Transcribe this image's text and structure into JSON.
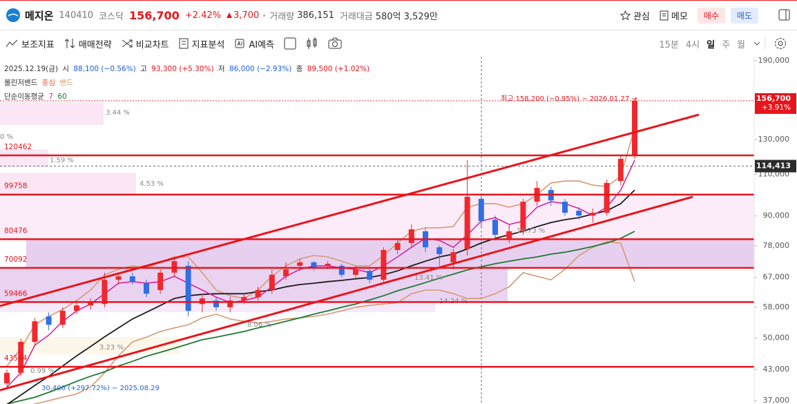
{
  "header": {
    "name": "메지온",
    "code": "140410",
    "market": "코스닥",
    "price": "156,700",
    "change_pct": "+2.42%",
    "change": "3,700",
    "volume_label": "거래량",
    "volume": "386,151",
    "amount_label": "거래대금",
    "amount": "580억 3,529만",
    "watch": "관심",
    "memo": "메모",
    "buy": "매수",
    "sell": "매도"
  },
  "toolbar": {
    "tools": [
      "보조지표",
      "매매전략",
      "비교차트",
      "지표분석",
      "AI예측"
    ],
    "periods": [
      "15분",
      "4시",
      "일",
      "주",
      "월"
    ],
    "active_period": "일"
  },
  "info": {
    "date": "2025.12.19(금)",
    "open_label": "시",
    "open": "88,100 (−0.56%)",
    "high_label": "고",
    "high": "93,300 (+5.30%)",
    "low_label": "저",
    "low": "86,000 (−2.93%)",
    "close_label": "종",
    "close": "89,500 (+1.02%)"
  },
  "chart_data": {
    "type": "candlestick",
    "up_color": "#f0282d",
    "down_color": "#2f6ee6",
    "log_scale": true,
    "ylim": [
      36400,
      193800
    ],
    "yticks": [
      {
        "value": 190000,
        "label": "190,000"
      },
      {
        "value": 130000,
        "label": "130,000"
      },
      {
        "value": 110000,
        "label": "110,000"
      },
      {
        "value": 90000,
        "label": "90,000"
      },
      {
        "value": 78000,
        "label": "78,000"
      },
      {
        "value": 67000,
        "label": "67,000"
      },
      {
        "value": 58000,
        "label": "58,000"
      },
      {
        "value": 50000,
        "label": "50,000"
      },
      {
        "value": 43000,
        "label": "43,000"
      },
      {
        "value": 37000,
        "label": "37,000"
      }
    ],
    "open": [
      40200,
      42300,
      49100,
      55500,
      53300,
      57000,
      58500,
      58900,
      66200,
      67300,
      65100,
      63000,
      68500,
      70800,
      58900,
      59900,
      58000,
      59900,
      60900,
      63000,
      67300,
      70800,
      72000,
      70800,
      70800,
      67800,
      69100,
      66200,
      76400,
      79000,
      83600,
      77400,
      72000,
      76800,
      97700,
      88400,
      80800,
      83600,
      96400,
      102000,
      96400,
      92300,
      90200,
      91400,
      106500,
      120500
    ],
    "high": [
      43000,
      49900,
      55100,
      56600,
      58000,
      59900,
      60500,
      68500,
      68500,
      68500,
      66200,
      69600,
      73900,
      72400,
      61300,
      60900,
      60900,
      61900,
      64000,
      69600,
      72000,
      73200,
      72400,
      72400,
      71500,
      70800,
      70100,
      77400,
      80800,
      86400,
      85000,
      78200,
      76800,
      117700,
      100300,
      90200,
      86400,
      97700,
      106500,
      103700,
      97700,
      93900,
      93300,
      107200,
      120500,
      158200
    ],
    "low": [
      39500,
      41600,
      48300,
      51900,
      52500,
      56100,
      57400,
      58000,
      64700,
      64700,
      60900,
      61900,
      67300,
      55500,
      56600,
      57000,
      56600,
      58900,
      59900,
      61900,
      66200,
      69100,
      69100,
      69600,
      66900,
      66900,
      65100,
      65600,
      74900,
      77400,
      75600,
      70800,
      69600,
      74400,
      85500,
      80000,
      79000,
      82200,
      94500,
      94500,
      90200,
      88400,
      87200,
      90200,
      104400,
      118500
    ],
    "close": [
      42300,
      49100,
      54200,
      53300,
      57000,
      58500,
      59300,
      66200,
      67300,
      65600,
      61900,
      68500,
      72400,
      57000,
      60500,
      58000,
      59900,
      60900,
      63000,
      67800,
      69600,
      72000,
      70100,
      71500,
      67800,
      69600,
      66200,
      76400,
      79000,
      84400,
      77400,
      74900,
      75600,
      98700,
      87800,
      82200,
      83600,
      96400,
      103000,
      97000,
      91400,
      90200,
      91400,
      105500,
      118500,
      156700
    ],
    "bollinger": {
      "name": "볼린저밴드",
      "center": {
        "name": "중심",
        "color": "#1b1b1b",
        "values": [
          36300,
          38000,
          39800,
          41600,
          43700,
          45900,
          48000,
          50300,
          52500,
          54800,
          56600,
          58500,
          60500,
          61300,
          61700,
          61900,
          61900,
          61900,
          62500,
          63000,
          64000,
          64700,
          65100,
          65600,
          66000,
          66500,
          66900,
          67800,
          69100,
          70800,
          72400,
          73900,
          74900,
          76800,
          79000,
          80800,
          82200,
          83600,
          85500,
          87200,
          88400,
          89300,
          90800,
          92300,
          95500,
          102000
        ]
      },
      "band": {
        "name": "밴드",
        "color": "#d49a72",
        "upper": [
          43700,
          47500,
          53300,
          55500,
          57400,
          59900,
          63000,
          67800,
          69600,
          70800,
          70100,
          72000,
          73900,
          73900,
          68500,
          63000,
          61300,
          60500,
          63000,
          67300,
          70800,
          73200,
          74400,
          73900,
          72400,
          70800,
          70800,
          74400,
          79000,
          83600,
          85000,
          85000,
          85500,
          93900,
          95500,
          95500,
          93900,
          95500,
          99700,
          105500,
          106500,
          106500,
          104400,
          103700,
          109000,
          137600
        ],
        "lower": [
          34600,
          35800,
          36400,
          37000,
          37600,
          38200,
          39500,
          42300,
          45900,
          49100,
          50200,
          51600,
          52500,
          53300,
          55100,
          56100,
          54800,
          54200,
          53700,
          54200,
          54800,
          55100,
          55500,
          56100,
          57000,
          58000,
          58500,
          58900,
          59300,
          61900,
          63000,
          63000,
          61900,
          60500,
          60500,
          61900,
          64000,
          68500,
          67300,
          66200,
          69600,
          74400,
          77400,
          79500,
          79000,
          65600
        ]
      }
    },
    "moving_average": {
      "name": "단순이동평균",
      "series": [
        {
          "name": "7",
          "color": "#d8249c",
          "values": [
            39500,
            42300,
            48300,
            50700,
            54200,
            57000,
            58900,
            61900,
            65100,
            65600,
            65100,
            65600,
            67300,
            65100,
            63000,
            60900,
            59300,
            59900,
            60900,
            64000,
            67300,
            69600,
            70800,
            70800,
            70100,
            69600,
            68500,
            70800,
            73900,
            77400,
            80800,
            80000,
            77400,
            82200,
            87800,
            89300,
            86400,
            87800,
            93900,
            96400,
            95500,
            93300,
            90200,
            93900,
            102000,
            117700
          ]
        },
        {
          "name": "60",
          "color": "#1d7a34",
          "values": [
            36400,
            37000,
            37600,
            38500,
            39500,
            40600,
            41600,
            42500,
            43700,
            44700,
            45800,
            46700,
            47600,
            48600,
            49600,
            50200,
            50900,
            51600,
            52500,
            53300,
            54200,
            55100,
            56100,
            57000,
            58000,
            58900,
            60100,
            61300,
            62800,
            64000,
            65300,
            66700,
            68000,
            69400,
            70500,
            71500,
            72400,
            73200,
            73900,
            74900,
            75600,
            76600,
            77700,
            79000,
            80800,
            83600
          ]
        }
      ]
    },
    "levels": {
      "color": "#e8141b",
      "values": [
        120462,
        99758,
        80476,
        70092,
        59466,
        43544
      ]
    },
    "profile_labels": [
      "3.44 %",
      "0 %",
      "1.59 %",
      "4.53 %",
      "16.73 %",
      "13.41 %",
      "14.24 %",
      "8.06 %",
      "3.23 %",
      "0.99 %"
    ],
    "high_note": "최고 158,200 (−0.95%) − 2026.01.27 →",
    "low_note": "30,400 (+297.72%) − 2025.08.29",
    "last": {
      "value": 156700,
      "label": "156,700",
      "change": "+3.91%"
    },
    "crosshair": {
      "value": 114413,
      "label": "114,413"
    }
  }
}
